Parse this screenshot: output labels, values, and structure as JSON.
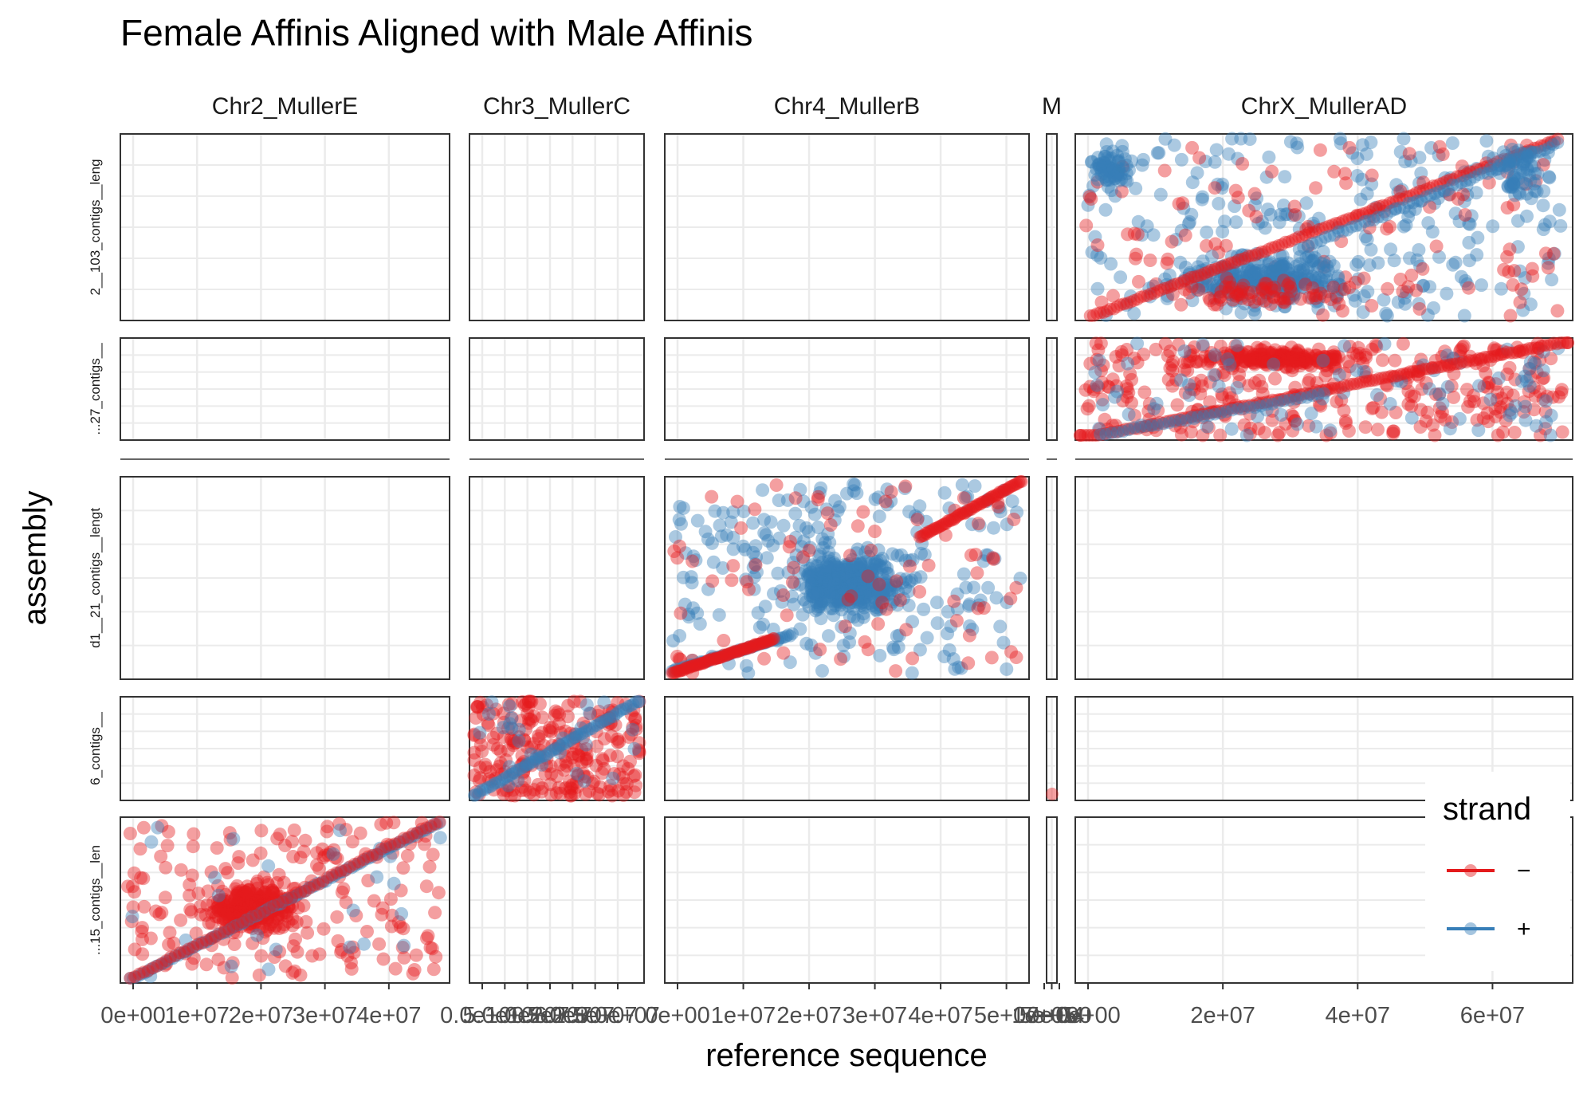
{
  "chart_data": {
    "type": "scatter",
    "title": "Female Affinis Aligned with Male Affinis",
    "xlabel": "reference sequence",
    "ylabel": "assembly",
    "columns": [
      {
        "name": "Chr2_MullerE",
        "xlim": [
          0,
          47500000
        ],
        "ticks": [
          "0e+00",
          "1e+07",
          "2e+07",
          "3e+07",
          "4e+07"
        ],
        "tick_values": [
          0,
          10000000,
          20000000,
          30000000,
          40000000
        ]
      },
      {
        "name": "Chr3_MullerC",
        "xlim": [
          0,
          33000000
        ],
        "ticks": [
          "0.0e+00",
          "5.0e+06",
          "1.0e+07",
          "1.5e+07",
          "2.0e+07",
          "2.5e+07",
          "3.0e+07"
        ],
        "tick_values": [
          0,
          5000000,
          10000000,
          15000000,
          20000000,
          25000000,
          30000000
        ]
      },
      {
        "name": "Chr4_MullerB",
        "xlim": [
          0,
          51500000
        ],
        "ticks": [
          "0e+00",
          "1e+07",
          "2e+07",
          "3e+07",
          "4e+07",
          "5e+07"
        ],
        "tick_values": [
          0,
          10000000,
          20000000,
          30000000,
          40000000,
          50000000
        ]
      },
      {
        "name": "M",
        "xlim": [
          0,
          100000
        ],
        "ticks": [
          "0e+00",
          "5e+04",
          "1e+05"
        ],
        "tick_values": [
          0,
          50000,
          100000
        ]
      },
      {
        "name": "ChrX_MullerAD",
        "xlim": [
          0,
          70000000
        ],
        "ticks": [
          "0e+00",
          "2e+07",
          "4e+07",
          "6e+07"
        ],
        "tick_values": [
          0,
          20000000,
          40000000,
          60000000
        ]
      }
    ],
    "rows": [
      {
        "label": "2__103_contigs__leng"
      },
      {
        "label": "...27_contigs__"
      },
      {
        "label": "..."
      },
      {
        "label": "d1__21_contigs__lengt"
      },
      {
        "label": "6_contigs__"
      },
      {
        "label": "...15_contigs__len"
      }
    ],
    "panels_with_data": [
      {
        "row": 0,
        "column": "ChrX_MullerAD",
        "pattern": "diagonal band from lower-left to upper-right, dense blue (+) cloud centred around 3e+07 with scattered red (−) points"
      },
      {
        "row": 1,
        "column": "ChrX_MullerAD",
        "pattern": "dense red (−) cloud across whole chromosome with diagonal from lower-left to upper-right"
      },
      {
        "row": 3,
        "column": "Chr4_MullerB",
        "pattern": "dense blue (+) cloud with red (−) diagonal along the upper right"
      },
      {
        "row": 4,
        "column": "Chr3_MullerC",
        "pattern": "dense red (−) cloud with blue (+) diagonal"
      },
      {
        "row": 4,
        "column": "M",
        "pattern": "single red (−) point near bottom"
      },
      {
        "row": 5,
        "column": "Chr2_MullerE",
        "pattern": "dense red (−) cloud with blue (+) diagonal from bottom-left to top-right"
      }
    ],
    "legend": {
      "title": "strand",
      "position": "bottom-right",
      "entries": [
        {
          "label": "−",
          "color": "#E41A1C"
        },
        {
          "label": "+",
          "color": "#377EB8"
        }
      ]
    },
    "grid": true,
    "colors": {
      "minus": "#E41A1C",
      "plus": "#377EB8",
      "grid": "#EBEBEB",
      "panel_border": "#333333"
    }
  }
}
